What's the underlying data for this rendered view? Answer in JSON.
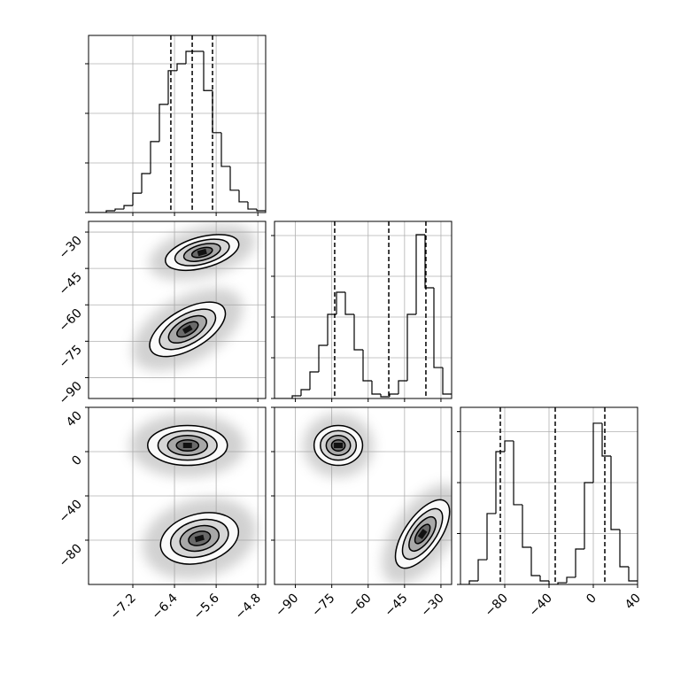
{
  "chart_data": [
    {
      "type": "histogram",
      "bins": [
        -8.05,
        -7.88,
        -7.71,
        -7.54,
        -7.37,
        -7.2,
        -7.03,
        -6.86,
        -6.69,
        -6.52,
        -6.35,
        -6.18,
        -6.01,
        -5.84,
        -5.67,
        -5.5,
        -5.33,
        -5.16,
        -4.99,
        -4.82,
        -4.65
      ],
      "values": [
        0,
        0,
        36,
        70,
        140,
        390,
        785,
        1430,
        2180,
        2860,
        3000,
        3250,
        3250,
        2460,
        1610,
        930,
        450,
        215,
        70,
        36
      ],
      "quantiles": [
        -6.47,
        -6.06,
        -5.67
      ],
      "xlim": [
        -8.05,
        -4.65
      ],
      "xticks": [
        -7.2,
        -6.4,
        -5.6,
        -4.8
      ],
      "ylim": [
        0,
        3571
      ],
      "yticks": [
        0,
        1000,
        2000,
        3000
      ],
      "grid": true
    },
    {
      "type": "contour",
      "xlim": [
        -8.05,
        -4.65
      ],
      "xticks": [
        -7.2,
        -6.4,
        -5.6,
        -4.8
      ],
      "ylim": [
        -98.6,
        -25.6
      ],
      "yticks": [
        {
          "value": -30,
          "label": "−30"
        },
        {
          "value": -45,
          "label": "−45"
        },
        {
          "value": -60,
          "label": "−60"
        },
        {
          "value": -75,
          "label": "−75"
        },
        {
          "value": -90,
          "label": "−90"
        }
      ],
      "blobs": [
        {
          "x": -5.87,
          "y": -38.4,
          "width": 1.45,
          "height": 12.8,
          "angle": -15
        },
        {
          "x": -6.15,
          "y": -70.1,
          "width": 1.62,
          "height": 16.4,
          "angle": -30
        }
      ],
      "grid": true
    },
    {
      "type": "histogram",
      "bins": [
        -98.6,
        -94.95,
        -91.3,
        -87.65,
        -84,
        -80.35,
        -76.7,
        -73.05,
        -69.4,
        -65.75,
        -62.1,
        -58.45,
        -54.8,
        -51.15,
        -47.5,
        -43.85,
        -40.2,
        -36.55,
        -32.9,
        -29.25,
        -25.6
      ],
      "values": [
        0,
        0,
        33,
        109,
        326,
        652,
        1033,
        1304,
        1033,
        598,
        217,
        54,
        22,
        54,
        217,
        1033,
        2011,
        1359,
        380,
        54
      ],
      "quantiles": [
        -73.8,
        -51.5,
        -36.2
      ],
      "xlim": [
        -98.6,
        -25.6
      ],
      "xticks": [
        -90,
        -75,
        -60,
        -45,
        -30
      ],
      "ylim": [
        0,
        2174
      ],
      "yticks": [
        0,
        500,
        1000,
        1500,
        2000
      ],
      "grid": true
    },
    {
      "type": "contour",
      "xlim": [
        -8.05,
        -4.65
      ],
      "xticks": [
        {
          "value": -7.2,
          "label": "−7.2"
        },
        {
          "value": -6.4,
          "label": "−6.4"
        },
        {
          "value": -5.6,
          "label": "−5.6"
        },
        {
          "value": -4.8,
          "label": "−4.8"
        }
      ],
      "ylim": [
        -120,
        40
      ],
      "yticks": [
        40,
        0,
        {
          "value": -40,
          "label": "−40"
        },
        {
          "value": -80,
          "label": "−80"
        }
      ],
      "blobs": [
        {
          "x": -6.15,
          "y": 5.6,
          "width": 1.53,
          "height": 36,
          "angle": 0
        },
        {
          "x": -5.92,
          "y": -78.4,
          "width": 1.53,
          "height": 44,
          "angle": -15
        }
      ],
      "grid": true
    },
    {
      "type": "contour",
      "xlim": [
        -98.6,
        -25.6
      ],
      "xticks": [
        {
          "value": -90,
          "label": "−90"
        },
        {
          "value": -75,
          "label": "−75"
        },
        {
          "value": -60,
          "label": "−60"
        },
        {
          "value": -45,
          "label": "−45"
        },
        {
          "value": -30,
          "label": "−30"
        }
      ],
      "ylim": [
        -120,
        40
      ],
      "yticks": [
        40,
        0,
        -40,
        -80
      ],
      "blobs": [
        {
          "x": -72.3,
          "y": 5.6,
          "width": 20,
          "height": 36,
          "angle": 0
        },
        {
          "x": -37.6,
          "y": -74.4,
          "width": 32.8,
          "height": 32,
          "angle": -55
        }
      ],
      "grid": true
    },
    {
      "type": "histogram",
      "bins": [
        -120,
        -112,
        -104,
        -96,
        -88,
        -80,
        -72,
        -64,
        -56,
        -48,
        -40,
        -32,
        -24,
        -16,
        -8,
        0,
        8,
        16,
        24,
        32,
        40
      ],
      "values": [
        0,
        35,
        243,
        696,
        1304,
        1409,
        783,
        365,
        87,
        35,
        0,
        17,
        70,
        348,
        1000,
        1583,
        1261,
        539,
        174,
        35
      ],
      "quantiles": [
        -84,
        -34.4,
        10.4
      ],
      "xlim": [
        -120,
        40
      ],
      "xticks": [
        {
          "value": -80,
          "label": "−80"
        },
        {
          "value": -40,
          "label": "−40"
        },
        0,
        40
      ],
      "ylim": [
        0,
        1739
      ],
      "yticks": [
        0,
        500,
        1000,
        1500
      ],
      "grid": true
    }
  ]
}
